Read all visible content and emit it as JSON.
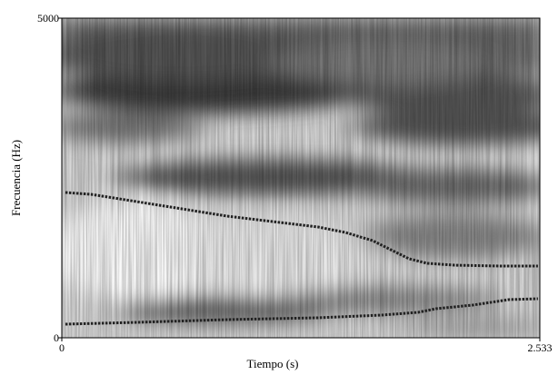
{
  "chart_data": {
    "type": "line",
    "x_label": "Tiempo (s)",
    "y_label": "Frecuencia (Hz)",
    "xlim": [
      0,
      2.533
    ],
    "xticks": [
      0,
      2.533
    ],
    "ylim": [
      0,
      5000
    ],
    "yticks": [
      0,
      5000
    ],
    "series": [
      {
        "color": "#222222",
        "x": [
          0.019,
          0.154,
          0.395,
          0.636,
          0.876,
          1.117,
          1.358,
          1.502,
          1.647,
          1.743,
          1.84,
          1.936,
          2.08,
          2.321,
          2.523
        ],
        "values": [
          2273,
          2244,
          2131,
          2017,
          1903,
          1818,
          1733,
          1648,
          1520,
          1378,
          1236,
          1165,
          1136,
          1122,
          1122
        ]
      },
      {
        "color": "#222222",
        "x": [
          0.019,
          0.395,
          0.876,
          1.358,
          1.695,
          1.888,
          1.984,
          2.177,
          2.369,
          2.523
        ],
        "values": [
          213,
          241,
          284,
          313,
          355,
          398,
          455,
          511,
          597,
          611
        ]
      }
    ]
  }
}
